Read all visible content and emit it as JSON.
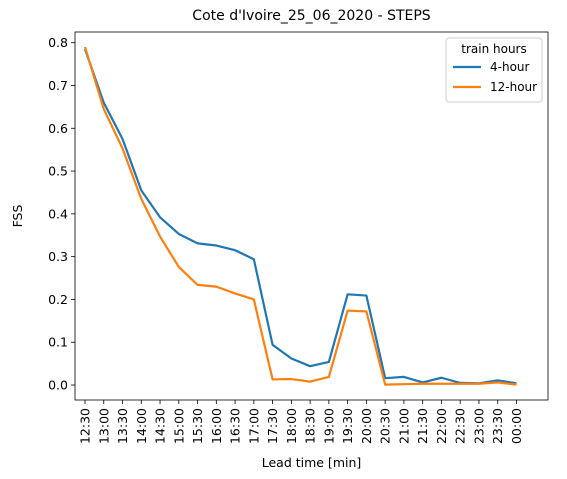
{
  "chart_data": {
    "type": "line",
    "title": "Cote d'Ivoire_25_06_2020 - STEPS",
    "xlabel": "Lead time [min]",
    "ylabel": "FSS",
    "ylim": [
      -0.035,
      0.825
    ],
    "yticks": [
      "0.0",
      "0.1",
      "0.2",
      "0.3",
      "0.4",
      "0.5",
      "0.6",
      "0.7",
      "0.8"
    ],
    "categories": [
      "12:30",
      "13:00",
      "13:30",
      "14:00",
      "14:30",
      "15:00",
      "15:30",
      "16:00",
      "16:30",
      "17:00",
      "17:30",
      "18:00",
      "18:30",
      "19:00",
      "19:30",
      "20:00",
      "20:30",
      "21:00",
      "21:30",
      "22:00",
      "22:30",
      "23:00",
      "23:30",
      "00:00"
    ],
    "legend": {
      "title": "train hours",
      "placement": "top-right"
    },
    "grid": false,
    "series": [
      {
        "name": "4-hour",
        "color": "#1f77b4",
        "values": [
          0.785,
          0.66,
          0.575,
          0.455,
          0.392,
          0.353,
          0.331,
          0.326,
          0.315,
          0.294,
          0.094,
          0.062,
          0.044,
          0.054,
          0.212,
          0.209,
          0.016,
          0.019,
          0.006,
          0.017,
          0.005,
          0.004,
          0.011,
          0.004
        ]
      },
      {
        "name": "12-hour",
        "color": "#ff7f0e",
        "values": [
          0.79,
          0.645,
          0.553,
          0.435,
          0.347,
          0.276,
          0.234,
          0.23,
          0.214,
          0.2,
          0.013,
          0.014,
          0.008,
          0.019,
          0.174,
          0.172,
          0.001,
          0.002,
          0.003,
          0.003,
          0.003,
          0.003,
          0.006,
          0.001
        ]
      }
    ]
  }
}
